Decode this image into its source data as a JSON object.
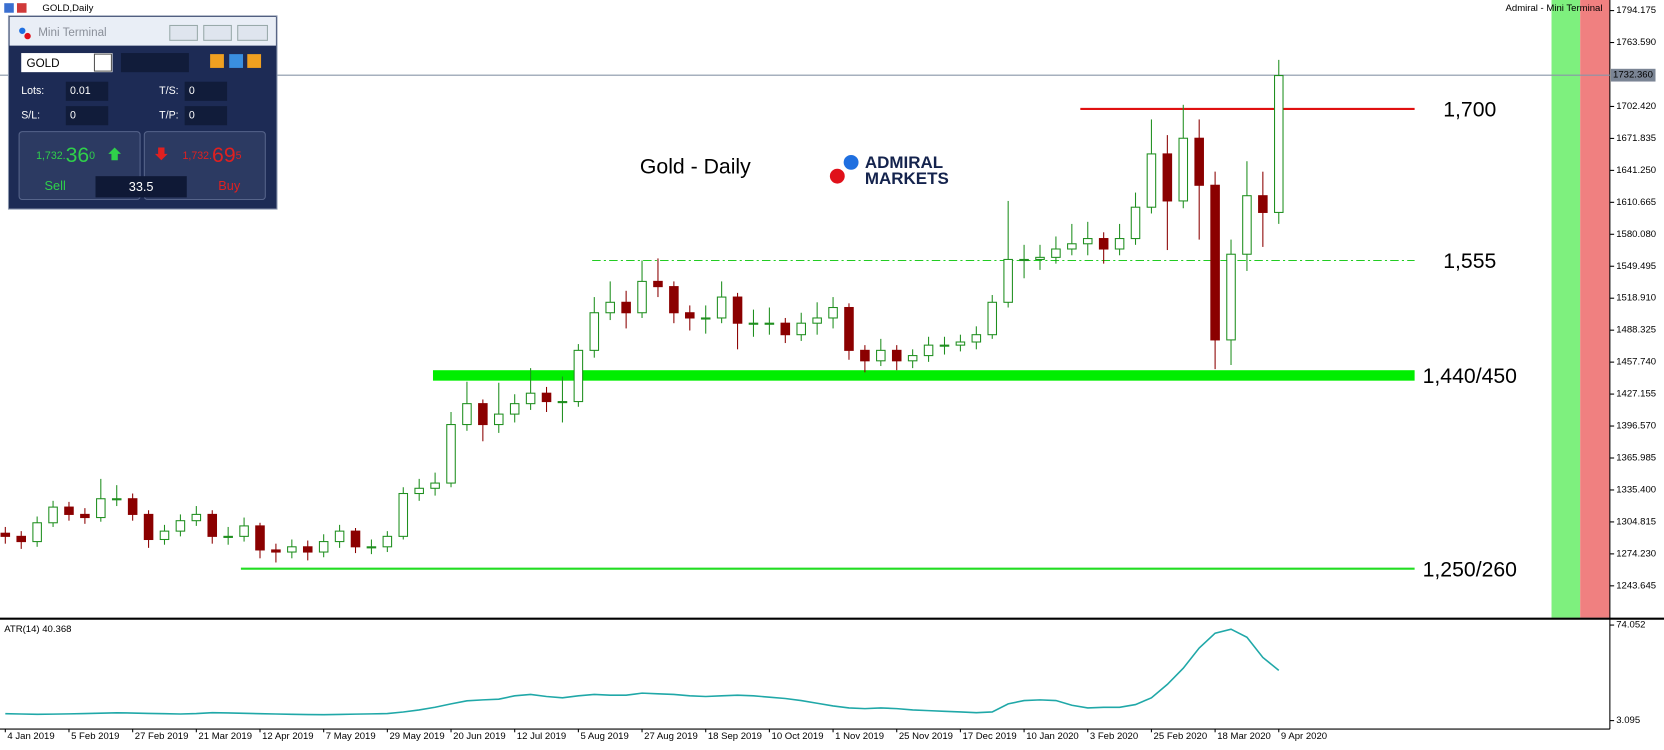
{
  "window": {
    "title": "GOLD,Daily",
    "panel_title": "Admiral - Mini Terminal"
  },
  "mini_terminal": {
    "title": "Mini Terminal",
    "symbol": "GOLD",
    "lots_label": "Lots:",
    "lots": "0.01",
    "ts_label": "T/S:",
    "ts": "0",
    "sl_label": "S/L:",
    "sl": "0",
    "tp_label": "T/P:",
    "tp": "0",
    "sell": {
      "prefix": "1,732.",
      "big": "36",
      "pip": "0",
      "label": "Sell"
    },
    "buy": {
      "prefix": "1,732.",
      "big": "69",
      "pip": "5",
      "label": "Buy"
    },
    "spread": "33.5"
  },
  "chart_data": {
    "type": "candlestick",
    "title": "Gold - Daily",
    "logo": [
      "ADMIRAL",
      "MARKETS"
    ],
    "categories": [
      "4 Jan 2019",
      null,
      null,
      null,
      "5 Feb 2019",
      null,
      null,
      null,
      "27 Feb 2019",
      null,
      null,
      null,
      "21 Mar 2019",
      null,
      null,
      null,
      "12 Apr 2019",
      null,
      null,
      null,
      "7 May 2019",
      null,
      null,
      null,
      "29 May 2019",
      null,
      null,
      null,
      "20 Jun 2019",
      null,
      null,
      null,
      "12 Jul 2019",
      null,
      null,
      null,
      "5 Aug 2019",
      null,
      null,
      null,
      "27 Aug 2019",
      null,
      null,
      null,
      "18 Sep 2019",
      null,
      null,
      null,
      "10 Oct 2019",
      null,
      null,
      null,
      "1 Nov 2019",
      null,
      null,
      null,
      "25 Nov 2019",
      null,
      null,
      null,
      "17 Dec 2019",
      null,
      null,
      null,
      "10 Jan 2020",
      null,
      null,
      null,
      "3 Feb 2020",
      null,
      null,
      null,
      "25 Feb 2020",
      null,
      null,
      null,
      "18 Mar 2020",
      null,
      null,
      null,
      "9 Apr 2020"
    ],
    "open": [
      1294,
      1291,
      1286,
      1304,
      1319,
      1312,
      1309,
      1327,
      1327,
      1312,
      1288,
      1296,
      1306,
      1312,
      1291,
      1291,
      1301,
      1278,
      1276,
      1281,
      1276,
      1286,
      1296,
      1281,
      1281,
      1291,
      1332,
      1337,
      1342,
      1398,
      1418,
      1398,
      1408,
      1418,
      1428,
      1420,
      1420,
      1469,
      1505,
      1515,
      1505,
      1535,
      1530,
      1505,
      1500,
      1500,
      1520,
      1495,
      1495,
      1495,
      1484,
      1495,
      1500,
      1510,
      1469,
      1459,
      1469,
      1459,
      1464,
      1474,
      1474,
      1477,
      1484,
      1515,
      1556,
      1556,
      1558,
      1566,
      1571,
      1576,
      1566,
      1576,
      1606,
      1657,
      1612,
      1672,
      1627,
      1479,
      1561,
      1617,
      1601
    ],
    "high": [
      1300,
      1296,
      1310,
      1325,
      1324,
      1318,
      1346,
      1340,
      1332,
      1316,
      1302,
      1312,
      1320,
      1316,
      1300,
      1309,
      1304,
      1284,
      1288,
      1287,
      1293,
      1302,
      1299,
      1288,
      1296,
      1338,
      1346,
      1352,
      1410,
      1439,
      1422,
      1438,
      1427,
      1452,
      1434,
      1444,
      1475,
      1520,
      1535,
      1526,
      1555,
      1557,
      1535,
      1512,
      1512,
      1535,
      1524,
      1508,
      1510,
      1500,
      1505,
      1515,
      1520,
      1514,
      1474,
      1480,
      1474,
      1470,
      1482,
      1482,
      1484,
      1492,
      1522,
      1612,
      1570,
      1570,
      1578,
      1590,
      1592,
      1582,
      1590,
      1620,
      1690,
      1675,
      1704,
      1690,
      1640,
      1575,
      1650,
      1640,
      1747
    ],
    "low": [
      1284,
      1279,
      1281,
      1300,
      1306,
      1303,
      1305,
      1320,
      1306,
      1280,
      1283,
      1291,
      1301,
      1284,
      1283,
      1286,
      1270,
      1266,
      1270,
      1268,
      1271,
      1280,
      1275,
      1274,
      1276,
      1288,
      1325,
      1330,
      1338,
      1392,
      1382,
      1390,
      1400,
      1412,
      1410,
      1400,
      1415,
      1462,
      1498,
      1490,
      1500,
      1520,
      1495,
      1488,
      1485,
      1495,
      1470,
      1482,
      1484,
      1476,
      1478,
      1484,
      1490,
      1460,
      1448,
      1454,
      1450,
      1452,
      1458,
      1465,
      1468,
      1470,
      1480,
      1510,
      1538,
      1546,
      1552,
      1560,
      1560,
      1552,
      1560,
      1570,
      1600,
      1565,
      1605,
      1575,
      1451,
      1455,
      1545,
      1568,
      1590
    ],
    "close": [
      1291,
      1286,
      1304,
      1319,
      1312,
      1309,
      1327,
      1327,
      1312,
      1288,
      1296,
      1306,
      1312,
      1291,
      1291,
      1301,
      1278,
      1276,
      1281,
      1276,
      1286,
      1296,
      1281,
      1281,
      1291,
      1332,
      1337,
      1342,
      1398,
      1418,
      1398,
      1408,
      1418,
      1428,
      1420,
      1420,
      1469,
      1505,
      1515,
      1505,
      1535,
      1530,
      1505,
      1500,
      1500,
      1520,
      1495,
      1495,
      1495,
      1484,
      1495,
      1500,
      1510,
      1469,
      1459,
      1469,
      1459,
      1464,
      1474,
      1474,
      1477,
      1484,
      1515,
      1556,
      1556,
      1558,
      1566,
      1571,
      1576,
      1566,
      1576,
      1606,
      1657,
      1612,
      1672,
      1627,
      1479,
      1561,
      1617,
      1601,
      1732
    ],
    "up_color": "#1f8f1f",
    "down_color": "#8b0000",
    "ylim": [
      1213.2,
      1804.3
    ],
    "yticks": [
      1794.175,
      {
        "value": 1763.59,
        "label": "1763.590"
      },
      {
        "value": 1702.42,
        "label": "1702.420"
      },
      1671.835,
      {
        "value": 1641.25,
        "label": "1641.250"
      },
      1610.665,
      {
        "value": 1580.08,
        "label": "1580.080"
      },
      1549.495,
      {
        "value": 1518.91,
        "label": "1518.910"
      },
      1488.325,
      {
        "value": 1457.74,
        "label": "1457.740"
      },
      1427.155,
      {
        "value": 1396.57,
        "label": "1396.570"
      },
      1365.985,
      {
        "value": 1335.4,
        "label": "1335.400"
      },
      1304.815,
      {
        "value": 1274.23,
        "label": "1274.230"
      },
      1243.645
    ],
    "current_price": {
      "value": 1732.36,
      "label": "1732.360"
    },
    "levels": [
      {
        "label": "1,700",
        "values": [
          1700
        ],
        "color": "#e01010",
        "style": "solid"
      },
      {
        "label": "1,555",
        "values": [
          1555
        ],
        "color": "#22cc22",
        "style": "dashdot"
      },
      {
        "label": "1,440/450",
        "values": [
          1440,
          1450
        ],
        "color": "#00ee00",
        "style": "band"
      },
      {
        "label": "1,250/260",
        "values": [
          1260
        ],
        "color": "#22dd22",
        "style": "solid"
      }
    ],
    "indicator": {
      "label": "ATR(14) 40.368",
      "color": "#20a8a8",
      "values": [
        8.2,
        8.0,
        7.8,
        7.9,
        8.1,
        8.3,
        8.6,
        8.9,
        8.7,
        8.4,
        8.2,
        8.0,
        8.3,
        9.0,
        8.8,
        8.5,
        8.2,
        8.0,
        7.8,
        7.6,
        7.5,
        7.7,
        7.9,
        8.1,
        8.3,
        9.5,
        11.0,
        13.0,
        15.5,
        17.8,
        18.5,
        19.0,
        21.5,
        22.5,
        21.0,
        20.0,
        21.5,
        22.5,
        22.0,
        22.0,
        23.5,
        23.0,
        22.5,
        21.5,
        21.0,
        21.5,
        22.0,
        21.5,
        20.5,
        19.5,
        18.0,
        16.0,
        14.0,
        12.5,
        12.0,
        12.5,
        12.0,
        11.0,
        10.5,
        10.0,
        9.5,
        9.0,
        9.5,
        15.5,
        18.0,
        18.5,
        18.0,
        14.5,
        12.5,
        13.0,
        13.0,
        15.0,
        20.0,
        30.0,
        42.0,
        57.0,
        68.0,
        71.0,
        65.0,
        50.0,
        40.368
      ],
      "y2lim": [
        -3.2,
        77.2
      ],
      "y2ticks": [
        74.052,
        3.095
      ]
    }
  }
}
